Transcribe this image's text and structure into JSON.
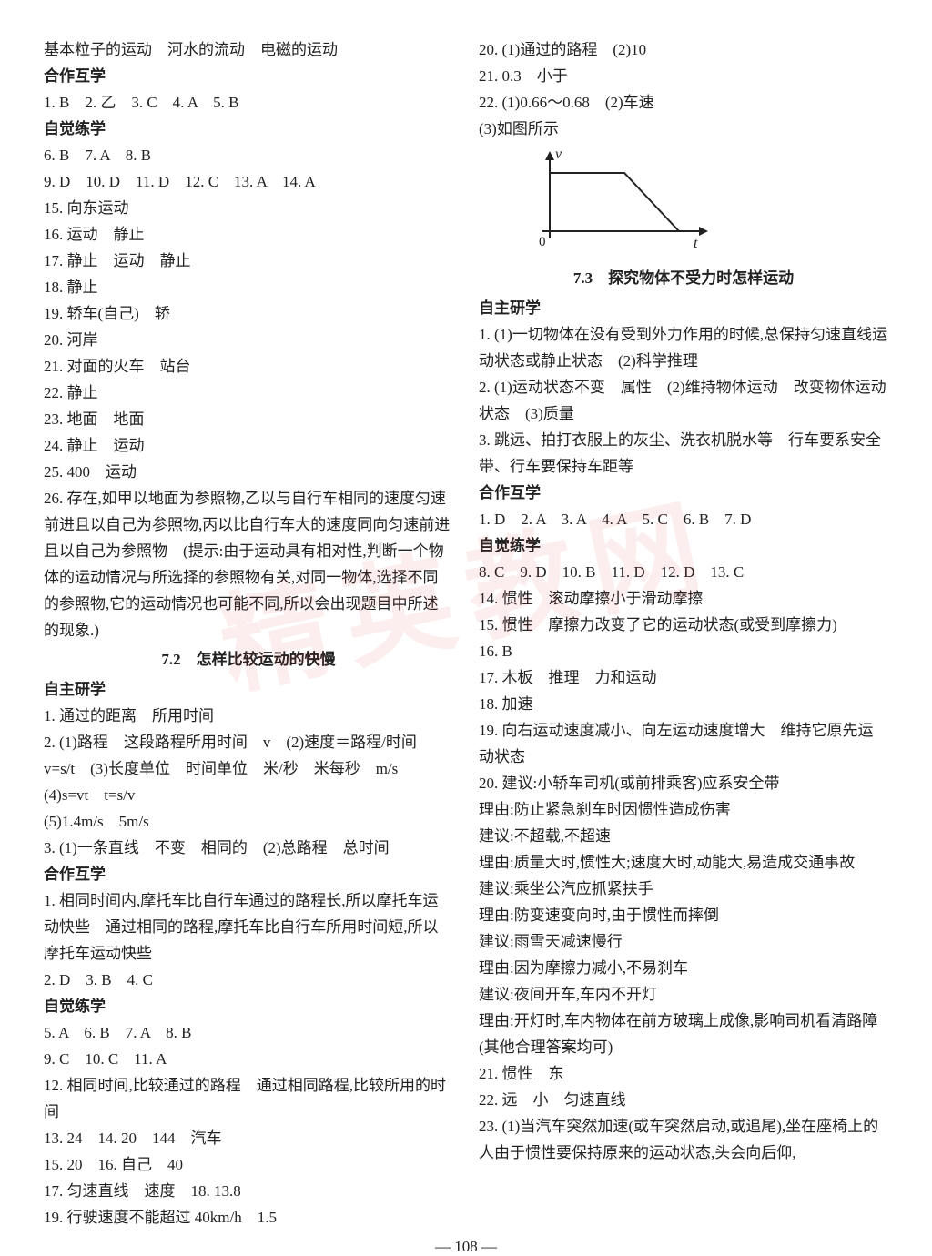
{
  "watermark": "精英教网",
  "pagenum": "— 108 —",
  "left": {
    "top": [
      "基本粒子的运动　河水的流动　电磁的运动"
    ],
    "hzhx_label": "合作互学",
    "hzhx": [
      "1. B　2. 乙　3. C　4. A　5. B"
    ],
    "zjlx_label": "自觉练学",
    "zjlx": [
      "6. B　7. A　8. B",
      "9. D　10. D　11. D　12. C　13. A　14. A",
      "15. 向东运动",
      "16. 运动　静止",
      "17. 静止　运动　静止",
      "18. 静止",
      "19. 轿车(自己)　轿",
      "20. 河岸",
      "21. 对面的火车　站台",
      "22. 静止",
      "23. 地面　地面",
      "24. 静止　运动",
      "25. 400　运动",
      "26. 存在,如甲以地面为参照物,乙以与自行车相同的速度匀速前进且以自己为参照物,丙以比自行车大的速度同向匀速前进且以自己为参照物　(提示:由于运动具有相对性,判断一个物体的运动情况与所选择的参照物有关,对同一物体,选择不同的参照物,它的运动情况也可能不同,所以会出现题目中所述的现象.)"
    ],
    "section72_title": "7.2　怎样比较运动的快慢",
    "zzhyx_label": "自主研学",
    "zzhyx": [
      "1. 通过的距离　所用时间",
      "2. (1)路程　这段路程所用时间　v　(2)速度＝路程/时间　v=s/t　(3)长度单位　时间单位　米/秒　米每秒　m/s　(4)s=vt　t=s/v",
      "(5)1.4m/s　5m/s",
      "3. (1)一条直线　不变　相同的　(2)总路程　总时间"
    ],
    "hzhx2_label": "合作互学",
    "hzhx2": [
      "1. 相同时间内,摩托车比自行车通过的路程长,所以摩托车运动快些　通过相同的路程,摩托车比自行车所用时间短,所以摩托车运动快些",
      "2. D　3. B　4. C"
    ],
    "zjlx2_label": "自觉练学",
    "zjlx2": [
      "5. A　6. B　7. A　8. B",
      "9. C　10. C　11. A",
      "12. 相同时间,比较通过的路程　通过相同路程,比较所用的时间",
      "13. 24　14. 20　144　汽车",
      "15. 20　16. 自己　40",
      "17. 匀速直线　速度　18. 13.8",
      "19. 行驶速度不能超过 40km/h　1.5"
    ]
  },
  "right": {
    "top": [
      "20. (1)通过的路程　(2)10",
      "21. 0.3　小于",
      "22. (1)0.66～0.68　(2)车速",
      "(3)如图所示"
    ],
    "graph": {
      "axis_color": "#222222",
      "line_color": "#222222",
      "x_label": "t",
      "y_label": "v",
      "origin_label": "0",
      "line_width": 2,
      "points": [
        [
          18,
          28
        ],
        [
          100,
          28
        ],
        [
          160,
          92
        ]
      ]
    },
    "section73_title": "7.3　探究物体不受力时怎样运动",
    "zzhyx_label": "自主研学",
    "zzhyx": [
      "1. (1)一切物体在没有受到外力作用的时候,总保持匀速直线运动状态或静止状态　(2)科学推理",
      "2. (1)运动状态不变　属性　(2)维持物体运动　改变物体运动状态　(3)质量",
      "3. 跳远、拍打衣服上的灰尘、洗衣机脱水等　行车要系安全带、行车要保持车距等"
    ],
    "hzhx_label": "合作互学",
    "hzhx": [
      "1. D　2. A　3. A　4. A　5. C　6. B　7. D"
    ],
    "zjlx_label": "自觉练学",
    "zjlx": [
      "8. C　9. D　10. B　11. D　12. D　13. C",
      "14. 惯性　滚动摩擦小于滑动摩擦",
      "15. 惯性　摩擦力改变了它的运动状态(或受到摩擦力)",
      "16. B",
      "17. 木板　推理　力和运动",
      "18. 加速",
      "19. 向右运动速度减小、向左运动速度增大　维持它原先运动状态",
      "20. 建议:小轿车司机(或前排乘客)应系安全带",
      "理由:防止紧急刹车时因惯性造成伤害",
      "建议:不超载,不超速",
      "理由:质量大时,惯性大;速度大时,动能大,易造成交通事故",
      "建议:乘坐公汽应抓紧扶手",
      "理由:防变速变向时,由于惯性而摔倒",
      "建议:雨雪天减速慢行",
      "理由:因为摩擦力减小,不易刹车",
      "建议:夜间开车,车内不开灯",
      "理由:开灯时,车内物体在前方玻璃上成像,影响司机看清路障(其他合理答案均可)",
      "21. 惯性　东",
      "22. 远　小　匀速直线",
      "23. (1)当汽车突然加速(或车突然启动,或追尾),坐在座椅上的人由于惯性要保持原来的运动状态,头会向后仰,"
    ]
  }
}
